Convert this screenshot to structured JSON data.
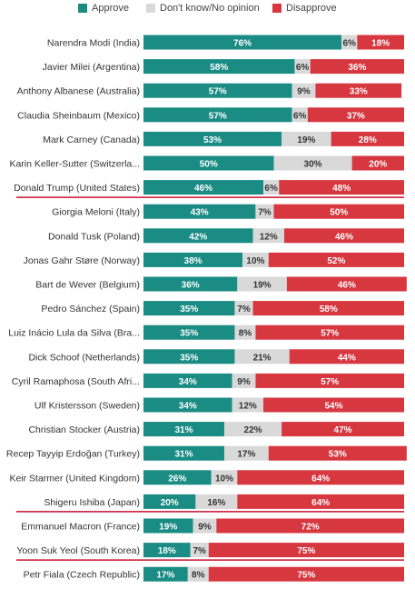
{
  "legend": {
    "approve": "Approve",
    "dont_know": "Don't know/No opinion",
    "disapprove": "Disapprove"
  },
  "colors": {
    "approve": "#1a8c84",
    "dont_know": "#d9d9d9",
    "disapprove": "#d7373f",
    "highlight": "#c8102e"
  },
  "chart_data": {
    "type": "bar",
    "orientation": "horizontal",
    "stacked": true,
    "xlim": [
      0,
      100
    ],
    "value_suffix": "%",
    "legend_position": "top",
    "categories": [
      "Narendra Modi (India)",
      "Javier Milei (Argentina)",
      "Anthony Albanese (Australia)",
      "Claudia Sheinbaum (Mexico)",
      "Mark Carney (Canada)",
      "Karin Keller-Sutter (Switzerla...",
      "Donald Trump (United States)",
      "Giorgia Meloni (Italy)",
      "Donald Tusk (Poland)",
      "Jonas Gahr Støre (Norway)",
      "Bart de Wever (Belgium)",
      "Pedro Sánchez (Spain)",
      "Luiz Inácio Lula da Silva (Bra...",
      "Dick Schoof (Netherlands)",
      "Cyril Ramaphosa (South Afri...",
      "Ulf Kristersson (Sweden)",
      "Christian Stocker (Austria)",
      "Recep Tayyip Erdoğan (Turkey)",
      "Keir Starmer (United Kingdom)",
      "Shigeru Ishiba (Japan)",
      "Emmanuel Macron (France)",
      "Yoon Suk Yeol (South Korea)",
      "Petr Fiala (Czech Republic)"
    ],
    "highlighted": [
      "Donald Trump (United States)",
      "Shigeru Ishiba (Japan)",
      "Yoon Suk Yeol (South Korea)"
    ],
    "series": [
      {
        "name": "Approve",
        "key": "approve",
        "values": [
          76,
          58,
          57,
          57,
          53,
          50,
          46,
          43,
          42,
          38,
          36,
          35,
          35,
          35,
          34,
          34,
          31,
          31,
          26,
          20,
          19,
          18,
          17
        ]
      },
      {
        "name": "Don't know/No opinion",
        "key": "dont_know",
        "values": [
          6,
          6,
          9,
          6,
          19,
          30,
          6,
          7,
          12,
          10,
          19,
          7,
          8,
          21,
          9,
          12,
          22,
          17,
          10,
          16,
          9,
          7,
          8
        ]
      },
      {
        "name": "Disapprove",
        "key": "disapprove",
        "values": [
          18,
          36,
          33,
          37,
          28,
          20,
          48,
          50,
          46,
          52,
          46,
          58,
          57,
          44,
          57,
          54,
          47,
          53,
          64,
          64,
          72,
          75,
          75
        ]
      }
    ]
  }
}
